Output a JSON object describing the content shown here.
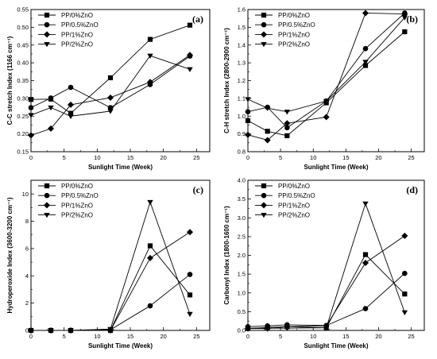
{
  "chart_data": [
    {
      "type": "line",
      "panel_label": "(a)",
      "xlabel": "Sunlight Time (Week)",
      "ylabel": "C-C stretch Index (1166 cm⁻¹)",
      "xlim": [
        0,
        27
      ],
      "ylim": [
        0.15,
        0.55
      ],
      "xticks": [
        0,
        5,
        10,
        15,
        20,
        25
      ],
      "yticks": [
        0.15,
        0.2,
        0.25,
        0.3,
        0.35,
        0.4,
        0.45,
        0.5,
        0.55
      ],
      "ytick_decimals": 2,
      "legend_position": "top-left",
      "series": [
        {
          "name": "PP/0%ZnO",
          "marker": "square",
          "x": [
            0,
            3,
            6,
            12,
            18,
            24
          ],
          "y": [
            0.297,
            0.298,
            0.258,
            0.358,
            0.466,
            0.506
          ]
        },
        {
          "name": "PP/0.5%ZnO",
          "marker": "circle",
          "x": [
            0,
            3,
            6,
            12,
            18,
            24
          ],
          "y": [
            0.274,
            0.301,
            0.331,
            0.274,
            0.339,
            0.419
          ]
        },
        {
          "name": "PP/1%ZnO",
          "marker": "diamond",
          "x": [
            0,
            3,
            6,
            12,
            18,
            24
          ],
          "y": [
            0.196,
            0.215,
            0.282,
            0.302,
            0.346,
            0.422
          ]
        },
        {
          "name": "PP/2%ZnO",
          "marker": "triangle-down",
          "x": [
            0,
            3,
            6,
            12,
            18,
            24
          ],
          "y": [
            0.253,
            0.274,
            0.25,
            0.264,
            0.42,
            0.382
          ]
        }
      ]
    },
    {
      "type": "line",
      "panel_label": "(b)",
      "xlabel": "Sunlight Time (Week)",
      "ylabel": "C-H stretch Index (2800-2900 cm⁻¹)",
      "xlim": [
        0,
        27
      ],
      "ylim": [
        0.8,
        1.6
      ],
      "xticks": [
        0,
        5,
        10,
        15,
        20,
        25
      ],
      "yticks": [
        0.8,
        0.9,
        1.0,
        1.1,
        1.2,
        1.3,
        1.4,
        1.5,
        1.6
      ],
      "ytick_decimals": 1,
      "legend_position": "top-left",
      "series": [
        {
          "name": "PP/0%ZnO",
          "marker": "square",
          "x": [
            0,
            3,
            6,
            12,
            18,
            24
          ],
          "y": [
            0.975,
            0.915,
            0.89,
            1.075,
            1.285,
            1.475
          ]
        },
        {
          "name": "PP/0.5%ZnO",
          "marker": "circle",
          "x": [
            0,
            3,
            6,
            12,
            18,
            24
          ],
          "y": [
            1.025,
            1.05,
            0.935,
            1.085,
            1.38,
            1.58
          ]
        },
        {
          "name": "PP/1%ZnO",
          "marker": "diamond",
          "x": [
            0,
            3,
            6,
            12,
            18,
            24
          ],
          "y": [
            0.895,
            0.865,
            0.96,
            0.995,
            1.58,
            1.575
          ]
        },
        {
          "name": "PP/2%ZnO",
          "marker": "triangle-down",
          "x": [
            0,
            3,
            6,
            12,
            18,
            24
          ],
          "y": [
            1.095,
            1.045,
            1.025,
            1.085,
            1.305,
            1.555
          ]
        }
      ]
    },
    {
      "type": "line",
      "panel_label": "(c)",
      "xlabel": "Sunlight Time (Week)",
      "ylabel": "Hydroperoxide Index (3600-3200 cm⁻¹)",
      "xlim": [
        0,
        27
      ],
      "ylim": [
        0,
        11
      ],
      "xticks": [
        0,
        5,
        10,
        15,
        20,
        25
      ],
      "yticks": [
        0,
        2,
        4,
        6,
        8,
        10
      ],
      "ytick_decimals": 0,
      "legend_position": "top-left",
      "series": [
        {
          "name": "PP/0%ZnO",
          "marker": "square",
          "x": [
            0,
            3,
            6,
            12,
            18,
            24
          ],
          "y": [
            0.0,
            0.0,
            0.0,
            0.0,
            6.2,
            2.6
          ]
        },
        {
          "name": "PP/0.5%ZnO",
          "marker": "circle",
          "x": [
            0,
            3,
            6,
            12,
            18,
            24
          ],
          "y": [
            0.0,
            0.0,
            0.0,
            0.05,
            1.8,
            4.1
          ]
        },
        {
          "name": "PP/1%ZnO",
          "marker": "diamond",
          "x": [
            0,
            3,
            6,
            12,
            18,
            24
          ],
          "y": [
            0.0,
            0.0,
            0.0,
            0.0,
            5.3,
            7.2
          ]
        },
        {
          "name": "PP/2%ZnO",
          "marker": "triangle-down",
          "x": [
            0,
            3,
            6,
            12,
            18,
            24
          ],
          "y": [
            0.0,
            0.0,
            0.0,
            0.1,
            9.4,
            1.2
          ]
        }
      ]
    },
    {
      "type": "line",
      "panel_label": "(d)",
      "xlabel": "Sunlight Time (Week)",
      "ylabel": "Carbonyl Index (1800-1600 cm⁻¹)",
      "xlim": [
        0,
        27
      ],
      "ylim": [
        0,
        4.0
      ],
      "xticks": [
        0,
        5,
        10,
        15,
        20,
        25
      ],
      "yticks": [
        0.0,
        0.5,
        1.0,
        1.5,
        2.0,
        2.5,
        3.0,
        3.5,
        4.0
      ],
      "ytick_decimals": 1,
      "legend_position": "top-left",
      "series": [
        {
          "name": "PP/0%ZnO",
          "marker": "square",
          "x": [
            0,
            3,
            6,
            12,
            18,
            24
          ],
          "y": [
            0.05,
            0.08,
            0.1,
            0.07,
            2.02,
            0.97
          ]
        },
        {
          "name": "PP/0.5%ZnO",
          "marker": "circle",
          "x": [
            0,
            3,
            6,
            12,
            18,
            24
          ],
          "y": [
            0.1,
            0.12,
            0.15,
            0.13,
            0.58,
            1.52
          ]
        },
        {
          "name": "PP/1%ZnO",
          "marker": "diamond",
          "x": [
            0,
            3,
            6,
            12,
            18,
            24
          ],
          "y": [
            0.05,
            0.05,
            0.1,
            0.12,
            1.8,
            2.52
          ]
        },
        {
          "name": "PP/2%ZnO",
          "marker": "triangle-down",
          "x": [
            0,
            3,
            6,
            12,
            18,
            24
          ],
          "y": [
            0.06,
            0.06,
            0.06,
            0.07,
            3.38,
            0.48
          ]
        }
      ]
    }
  ]
}
